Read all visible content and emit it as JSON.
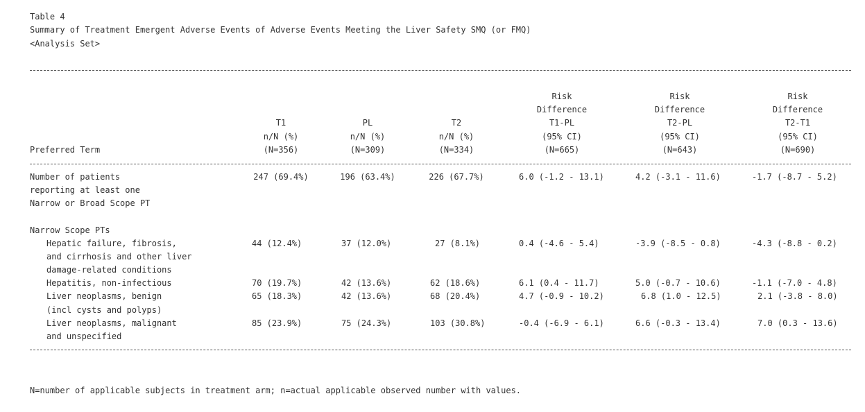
{
  "header": {
    "table_number": "Table 4",
    "title": "Summary of Treatment Emergent Adverse Events of Adverse Events Meeting the Liver Safety SMQ (or FMQ)",
    "analysis_set": "<Analysis Set>"
  },
  "columns": {
    "preferred_term": "Preferred Term",
    "t1": [
      "T1",
      "n/N (%)",
      "(N=356)"
    ],
    "pl": [
      "PL",
      "n/N (%)",
      "(N=309)"
    ],
    "t2": [
      "T2",
      "n/N (%)",
      "(N=334)"
    ],
    "rd1": [
      "Risk",
      "Difference",
      "T1-PL",
      "(95% CI)",
      "(N=665)"
    ],
    "rd2": [
      "Risk",
      "Difference",
      "T2-PL",
      "(95% CI)",
      "(N=643)"
    ],
    "rd3": [
      "Risk",
      "Difference",
      "T2-T1",
      "(95% CI)",
      "(N=690)"
    ]
  },
  "rows": [
    {
      "term_lines": [
        "Number of patients",
        "reporting at least one",
        "Narrow or Broad Scope PT"
      ],
      "t1": "247 (69.4%)",
      "pl": "196 (63.4%)",
      "t2": "226 (67.7%)",
      "rd1": "6.0 (-1.2 - 13.1)",
      "rd2": "4.2 (-3.1 - 11.6)",
      "rd3": "-1.7 (-8.7 - 5.2)"
    },
    {
      "term_lines": [
        "Narrow Scope PTs"
      ]
    },
    {
      "term_lines": [
        "Hepatic failure, fibrosis,",
        "and cirrhosis and other liver",
        "damage-related conditions"
      ],
      "t1": "44 (12.4%)",
      "pl": "37 (12.0%)",
      "t2": "27 (8.1%)",
      "rd1": "0.4 (-4.6 - 5.4)",
      "rd2": "-3.9 (-8.5 - 0.8)",
      "rd3": "-4.3 (-8.8 - 0.2)"
    },
    {
      "term_lines": [
        "Hepatitis, non-infectious"
      ],
      "t1": "70 (19.7%)",
      "pl": "42 (13.6%)",
      "t2": "62 (18.6%)",
      "rd1": "6.1 (0.4 - 11.7)",
      "rd2": "5.0 (-0.7 - 10.6)",
      "rd3": "-1.1 (-7.0 - 4.8)"
    },
    {
      "term_lines": [
        "Liver neoplasms, benign",
        "(incl cysts and polyps)"
      ],
      "t1": "65 (18.3%)",
      "pl": "42 (13.6%)",
      "t2": "68 (20.4%)",
      "rd1": "4.7 (-0.9 - 10.2)",
      "rd2": "6.8 (1.0 - 12.5)",
      "rd3": "2.1 (-3.8 - 8.0)"
    },
    {
      "term_lines": [
        "Liver neoplasms, malignant",
        "and unspecified"
      ],
      "t1": "85 (23.9%)",
      "pl": "75 (24.3%)",
      "t2": "103 (30.8%)",
      "rd1": "-0.4 (-6.9 - 6.1)",
      "rd2": "6.6 (-0.3 - 13.4)",
      "rd3": "7.0 (0.3 - 13.6)"
    }
  ],
  "footnote": "N=number of applicable subjects in treatment arm; n=actual applicable observed number with values."
}
